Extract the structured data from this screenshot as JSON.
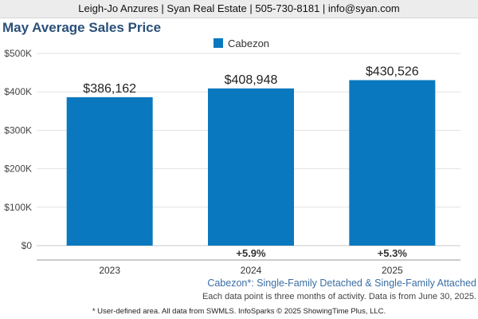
{
  "header": {
    "contact": "Leigh-Jo Anzures | Syan Real Estate | 505-730-8181 | info@syan.com"
  },
  "colors": {
    "bar": "#0a78be",
    "title": "#2a5078",
    "header_bg": "#ececec"
  },
  "chart_data": {
    "type": "bar",
    "title": "May Average Sales Price",
    "xlabel": "",
    "ylabel": "",
    "categories": [
      "2023",
      "2024",
      "2025"
    ],
    "series": [
      {
        "name": "Cabezon",
        "values": [
          386162,
          408948,
          430526
        ],
        "value_labels": [
          "$386,162",
          "$408,948",
          "$430,526"
        ]
      }
    ],
    "change_labels": [
      "",
      "+5.9%",
      "+5.3%"
    ],
    "yticks": [
      0,
      100000,
      200000,
      300000,
      400000,
      500000
    ],
    "ytick_labels": [
      "$0",
      "$100K",
      "$200K",
      "$300K",
      "$400K",
      "$500K"
    ],
    "ylim": [
      0,
      500000
    ],
    "grid": true,
    "legend_position": "top-center"
  },
  "footnotes": {
    "area": "Cabezon*: Single-Family Detached & Single-Family Attached",
    "data_note": "Each data point is three months of activity. Data is from June 30, 2025.",
    "source": "* User-defined area. All data from SWMLS. InfoSparks © 2025 ShowingTime Plus, LLC."
  }
}
